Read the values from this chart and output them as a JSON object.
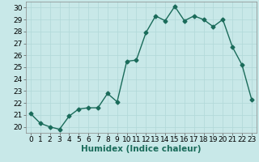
{
  "x": [
    0,
    1,
    2,
    3,
    4,
    5,
    6,
    7,
    8,
    9,
    10,
    11,
    12,
    13,
    14,
    15,
    16,
    17,
    18,
    19,
    20,
    21,
    22,
    23
  ],
  "y": [
    21.1,
    20.3,
    20.0,
    19.8,
    20.9,
    21.5,
    21.6,
    21.6,
    22.8,
    22.1,
    25.5,
    25.6,
    27.9,
    29.3,
    28.9,
    30.1,
    28.9,
    29.3,
    29.0,
    28.4,
    29.0,
    26.7,
    25.2,
    22.3
  ],
  "line_color": "#1a6b5a",
  "marker": "D",
  "markersize": 2.5,
  "linewidth": 1.0,
  "bg_color": "#c8e8e8",
  "grid_color": "#b0d8d8",
  "xlabel": "Humidex (Indice chaleur)",
  "xlim": [
    -0.5,
    23.5
  ],
  "ylim": [
    19.5,
    30.5
  ],
  "yticks": [
    20,
    21,
    22,
    23,
    24,
    25,
    26,
    27,
    28,
    29,
    30
  ],
  "xticks": [
    0,
    1,
    2,
    3,
    4,
    5,
    6,
    7,
    8,
    9,
    10,
    11,
    12,
    13,
    14,
    15,
    16,
    17,
    18,
    19,
    20,
    21,
    22,
    23
  ],
  "xlabel_fontsize": 7.5,
  "tick_fontsize": 6.5
}
